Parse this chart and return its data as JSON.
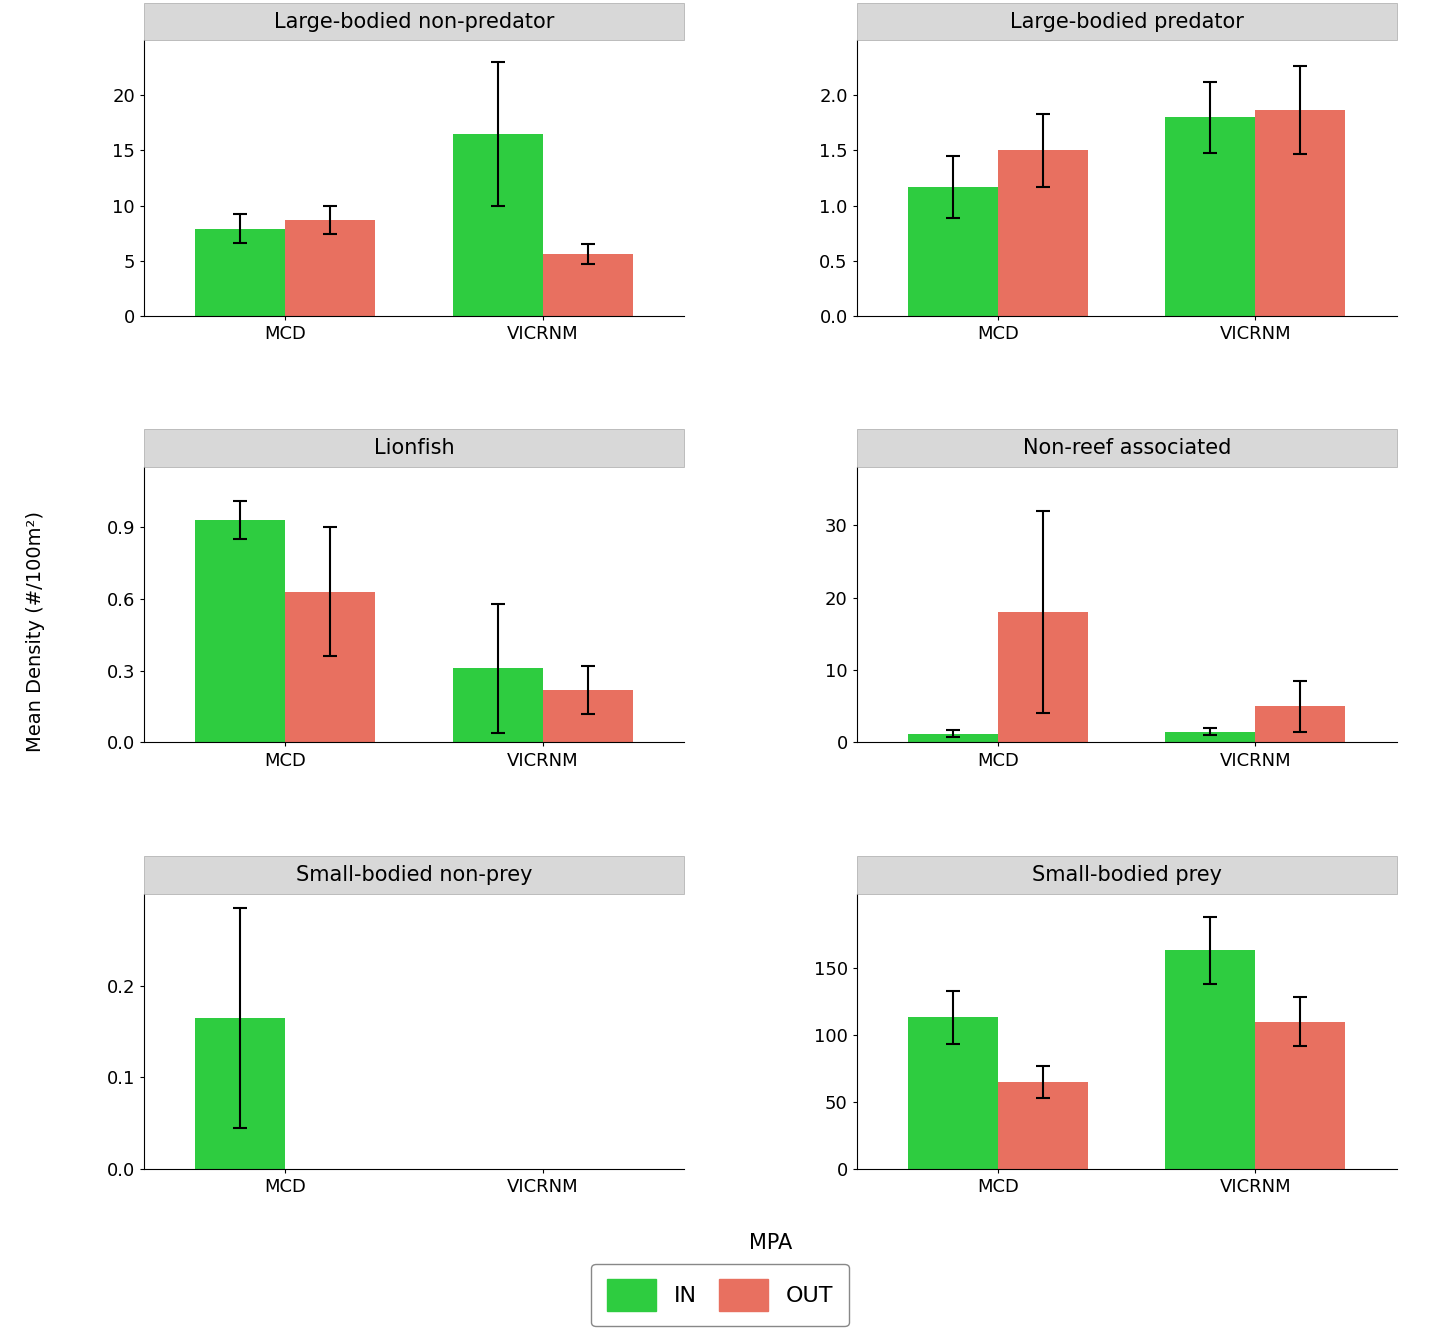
{
  "panels": [
    {
      "title": "Large-bodied non-predator",
      "row": 0,
      "col": 0,
      "groups": [
        "MCD",
        "VICRNM"
      ],
      "in_values": [
        7.9,
        16.5
      ],
      "out_values": [
        8.7,
        5.6
      ],
      "in_errors": [
        1.3,
        6.5
      ],
      "out_errors": [
        1.3,
        0.9
      ],
      "ylim": [
        0,
        25
      ],
      "yticks": [
        0,
        5,
        10,
        15,
        20
      ]
    },
    {
      "title": "Large-bodied predator",
      "row": 0,
      "col": 1,
      "groups": [
        "MCD",
        "VICRNM"
      ],
      "in_values": [
        1.17,
        1.8
      ],
      "out_values": [
        1.5,
        1.87
      ],
      "in_errors": [
        0.28,
        0.32
      ],
      "out_errors": [
        0.33,
        0.4
      ],
      "ylim": [
        0,
        2.5
      ],
      "yticks": [
        0.0,
        0.5,
        1.0,
        1.5,
        2.0
      ]
    },
    {
      "title": "Lionfish",
      "row": 1,
      "col": 0,
      "groups": [
        "MCD",
        "VICRNM"
      ],
      "in_values": [
        0.93,
        0.31
      ],
      "out_values": [
        0.63,
        0.22
      ],
      "in_errors": [
        0.08,
        0.27
      ],
      "out_errors": [
        0.27,
        0.1
      ],
      "ylim": [
        0,
        1.15
      ],
      "yticks": [
        0.0,
        0.3,
        0.6,
        0.9
      ]
    },
    {
      "title": "Non-reef associated",
      "row": 1,
      "col": 1,
      "groups": [
        "MCD",
        "VICRNM"
      ],
      "in_values": [
        1.2,
        1.5
      ],
      "out_values": [
        18.0,
        5.0
      ],
      "in_errors": [
        0.5,
        0.5
      ],
      "out_errors": [
        14.0,
        3.5
      ],
      "ylim": [
        0,
        38
      ],
      "yticks": [
        0,
        10,
        20,
        30
      ]
    },
    {
      "title": "Small-bodied non-prey",
      "row": 2,
      "col": 0,
      "groups": [
        "MCD",
        "VICRNM"
      ],
      "in_values": [
        0.165,
        null
      ],
      "out_values": [
        null,
        null
      ],
      "in_errors": [
        0.12,
        null
      ],
      "out_errors": [
        null,
        null
      ],
      "ylim": [
        0,
        0.3
      ],
      "yticks": [
        0.0,
        0.1,
        0.2
      ]
    },
    {
      "title": "Small-bodied prey",
      "row": 2,
      "col": 1,
      "groups": [
        "MCD",
        "VICRNM"
      ],
      "in_values": [
        113,
        163
      ],
      "out_values": [
        65,
        110
      ],
      "in_errors": [
        20,
        25
      ],
      "out_errors": [
        12,
        18
      ],
      "ylim": [
        0,
        205
      ],
      "yticks": [
        0,
        50,
        100,
        150
      ]
    }
  ],
  "color_in": "#2ECC40",
  "color_out": "#E87060",
  "bar_width": 0.35,
  "xlabel": "MPA",
  "ylabel": "Mean Density (#/100m²)",
  "panel_bg": "#D8D8D8",
  "fig_bg": "#FFFFFF",
  "title_fontsize": 15,
  "axis_fontsize": 14,
  "tick_fontsize": 13,
  "legend_fontsize": 16
}
